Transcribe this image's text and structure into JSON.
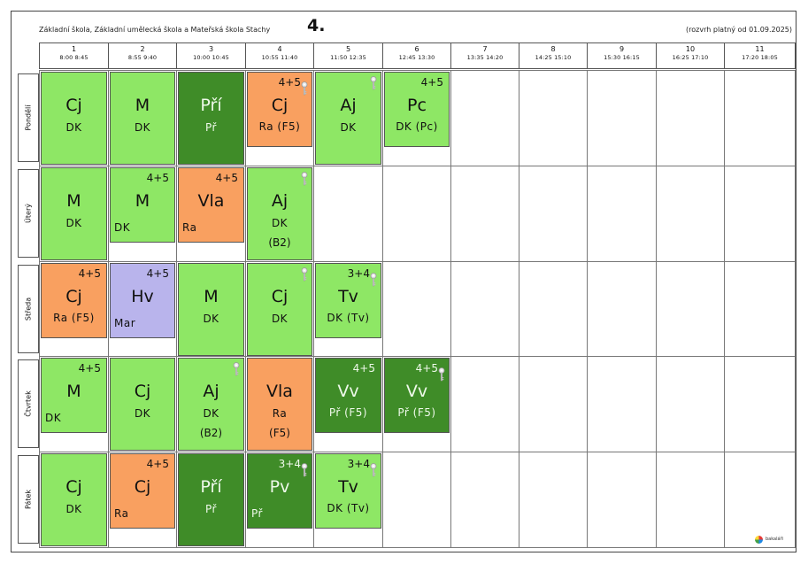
{
  "header": {
    "school": "Základní škola, Základní umělecká škola a Mateřská škola Stachy",
    "class_name": "4.",
    "validity": "(rozvrh platný od 01.09.2025)"
  },
  "periods": [
    {
      "num": "1",
      "time": "8:00  8:45"
    },
    {
      "num": "2",
      "time": "8:55  9:40"
    },
    {
      "num": "3",
      "time": "10:00 10:45"
    },
    {
      "num": "4",
      "time": "10:55 11:40"
    },
    {
      "num": "5",
      "time": "11:50 12:35"
    },
    {
      "num": "6",
      "time": "12:45 13:30"
    },
    {
      "num": "7",
      "time": "13:35 14:20"
    },
    {
      "num": "8",
      "time": "14:25 15:10"
    },
    {
      "num": "9",
      "time": "15:30 16:15"
    },
    {
      "num": "10",
      "time": "16:25 17:10"
    },
    {
      "num": "11",
      "time": "17:20 18:05"
    }
  ],
  "days": [
    "Pondělí",
    "Úterý",
    "Středa",
    "Čtvrtek",
    "Pátek"
  ],
  "colors": {
    "light_green": "#8ee765",
    "orange": "#f9a060",
    "dark_green": "#3f8c28",
    "purple": "#b9b4ec"
  },
  "lessons": [
    {
      "day": 0,
      "period": 0,
      "subject": "Cj",
      "teacher": "DK",
      "room": "",
      "group": "",
      "color": "lg",
      "key": false,
      "span": "full"
    },
    {
      "day": 0,
      "period": 1,
      "subject": "M",
      "teacher": "DK",
      "room": "",
      "group": "",
      "color": "lg",
      "key": false,
      "span": "full"
    },
    {
      "day": 0,
      "period": 2,
      "subject": "Pří",
      "teacher": "Př",
      "room": "",
      "group": "",
      "color": "dg",
      "key": false,
      "span": "full"
    },
    {
      "day": 0,
      "period": 3,
      "subject": "Cj",
      "teacher": "Ra  (F5)",
      "room": "",
      "group": "4+5",
      "color": "or",
      "key": true,
      "span": "part"
    },
    {
      "day": 0,
      "period": 4,
      "subject": "Aj",
      "teacher": "DK",
      "room": "",
      "group": "",
      "color": "lg",
      "key": true,
      "span": "full"
    },
    {
      "day": 0,
      "period": 5,
      "subject": "Pc",
      "teacher": "DK  (Pc)",
      "room": "",
      "group": "4+5",
      "color": "lg",
      "key": false,
      "span": "part"
    },
    {
      "day": 1,
      "period": 0,
      "subject": "M",
      "teacher": "DK",
      "room": "",
      "group": "",
      "color": "lg",
      "key": false,
      "span": "full"
    },
    {
      "day": 1,
      "period": 1,
      "subject": "M",
      "teacher": "DK",
      "room": "",
      "group": "4+5",
      "color": "lg",
      "key": false,
      "span": "part",
      "leftteach": true
    },
    {
      "day": 1,
      "period": 2,
      "subject": "Vla",
      "teacher": "Ra",
      "room": "",
      "group": "4+5",
      "color": "or",
      "key": false,
      "span": "part",
      "leftteach": true
    },
    {
      "day": 1,
      "period": 3,
      "subject": "Aj",
      "teacher": "DK",
      "room": "(B2)",
      "group": "",
      "color": "lg",
      "key": true,
      "span": "full"
    },
    {
      "day": 2,
      "period": 0,
      "subject": "Cj",
      "teacher": "Ra  (F5)",
      "room": "",
      "group": "4+5",
      "color": "or",
      "key": false,
      "span": "part"
    },
    {
      "day": 2,
      "period": 1,
      "subject": "Hv",
      "teacher": "Mar",
      "room": "",
      "group": "4+5",
      "color": "pu",
      "key": false,
      "span": "part",
      "leftteach": true
    },
    {
      "day": 2,
      "period": 2,
      "subject": "M",
      "teacher": "DK",
      "room": "",
      "group": "",
      "color": "lg",
      "key": false,
      "span": "full"
    },
    {
      "day": 2,
      "period": 3,
      "subject": "Cj",
      "teacher": "DK",
      "room": "",
      "group": "",
      "color": "lg",
      "key": true,
      "span": "full"
    },
    {
      "day": 2,
      "period": 4,
      "subject": "Tv",
      "teacher": "DK  (Tv)",
      "room": "",
      "group": "3+4",
      "color": "lg",
      "key": true,
      "span": "part"
    },
    {
      "day": 3,
      "period": 0,
      "subject": "M",
      "teacher": "DK",
      "room": "",
      "group": "4+5",
      "color": "lg",
      "key": false,
      "span": "part",
      "leftteach": true
    },
    {
      "day": 3,
      "period": 1,
      "subject": "Cj",
      "teacher": "DK",
      "room": "",
      "group": "",
      "color": "lg",
      "key": false,
      "span": "full"
    },
    {
      "day": 3,
      "period": 2,
      "subject": "Aj",
      "teacher": "DK",
      "room": "(B2)",
      "group": "",
      "color": "lg",
      "key": true,
      "span": "full"
    },
    {
      "day": 3,
      "period": 3,
      "subject": "Vla",
      "teacher": "Ra",
      "room": "(F5)",
      "group": "",
      "color": "or",
      "key": false,
      "span": "full"
    },
    {
      "day": 3,
      "period": 4,
      "subject": "Vv",
      "teacher": "Př  (F5)",
      "room": "",
      "group": "4+5",
      "color": "dg",
      "key": false,
      "span": "part"
    },
    {
      "day": 3,
      "period": 5,
      "subject": "Vv",
      "teacher": "Př  (F5)",
      "room": "",
      "group": "4+5",
      "color": "dg",
      "key": true,
      "span": "part"
    },
    {
      "day": 4,
      "period": 0,
      "subject": "Cj",
      "teacher": "DK",
      "room": "",
      "group": "",
      "color": "lg",
      "key": false,
      "span": "full"
    },
    {
      "day": 4,
      "period": 1,
      "subject": "Cj",
      "teacher": "Ra",
      "room": "",
      "group": "4+5",
      "color": "or",
      "key": false,
      "span": "part",
      "leftteach": true
    },
    {
      "day": 4,
      "period": 2,
      "subject": "Pří",
      "teacher": "Př",
      "room": "",
      "group": "",
      "color": "dg",
      "key": false,
      "span": "full"
    },
    {
      "day": 4,
      "period": 3,
      "subject": "Pv",
      "teacher": "Př",
      "room": "",
      "group": "3+4",
      "color": "dg",
      "key": true,
      "span": "part",
      "leftteach": true
    },
    {
      "day": 4,
      "period": 4,
      "subject": "Tv",
      "teacher": "DK  (Tv)",
      "room": "",
      "group": "3+4",
      "color": "lg",
      "key": true,
      "span": "part"
    }
  ],
  "logo": {
    "text": "bakaláři"
  }
}
